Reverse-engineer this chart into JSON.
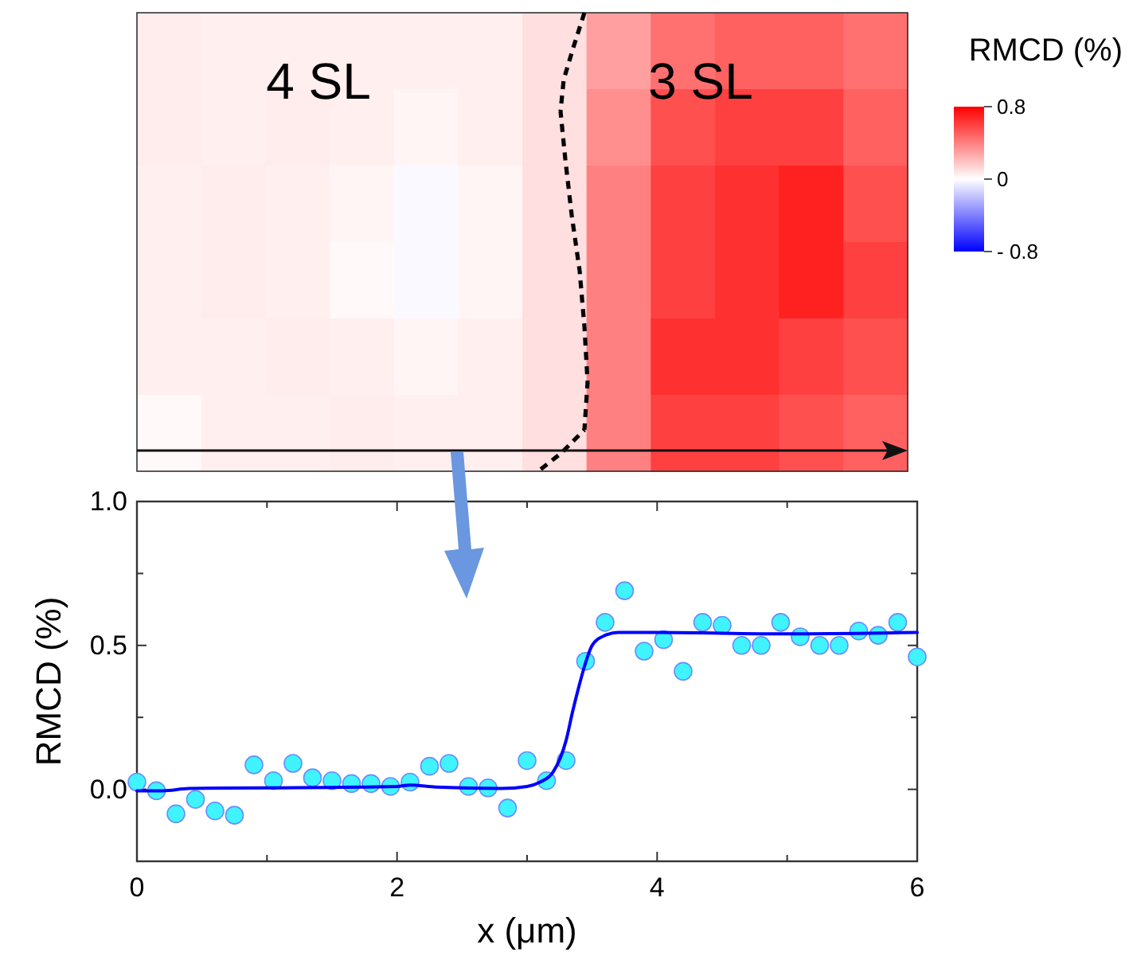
{
  "chart_data": [
    {
      "type": "heatmap",
      "clabel": "RMCD (%)",
      "annotations": [
        "4 SL",
        "3 SL"
      ],
      "categories": [
        null,
        null,
        null,
        null,
        null,
        null,
        null,
        null,
        null,
        null,
        null,
        null
      ],
      "y_categories": [
        null,
        null,
        null,
        null,
        null,
        null
      ],
      "cells": [
        [
          0.06,
          0.05,
          0.05,
          0.05,
          0.05,
          0.05,
          0.1,
          0.3,
          0.45,
          0.5,
          0.5,
          0.45
        ],
        [
          0.06,
          0.05,
          0.06,
          0.05,
          0.03,
          0.05,
          0.1,
          0.35,
          0.55,
          0.6,
          0.6,
          0.5
        ],
        [
          0.05,
          0.06,
          0.05,
          0.03,
          -0.02,
          0.03,
          0.1,
          0.4,
          0.6,
          0.65,
          0.7,
          0.55
        ],
        [
          0.05,
          0.06,
          0.05,
          0.02,
          -0.02,
          0.03,
          0.1,
          0.4,
          0.6,
          0.65,
          0.7,
          0.6
        ],
        [
          0.05,
          0.05,
          0.06,
          0.05,
          0.03,
          0.05,
          0.1,
          0.4,
          0.65,
          0.65,
          0.6,
          0.55
        ],
        [
          0.02,
          0.05,
          0.05,
          0.06,
          0.05,
          0.05,
          0.1,
          0.4,
          0.6,
          0.6,
          0.55,
          0.5
        ]
      ],
      "clim": [
        -0.8,
        0.8
      ],
      "cticks": [
        0.8,
        0,
        {
          "value": -0.8,
          "label": "- 0.8"
        }
      ]
    },
    {
      "type": "scatter",
      "xlabel": "x (μm)",
      "ylabel": "RMCD (%)",
      "xlim": [
        0,
        6
      ],
      "ylim": [
        -0.25,
        1.0
      ],
      "xticks": [
        0,
        {
          "value": 1,
          "label": null
        },
        2,
        {
          "value": 3,
          "label": null
        },
        4,
        {
          "value": 5,
          "label": null
        },
        6
      ],
      "yticks": [
        {
          "value": 0,
          "label": "0.0"
        },
        {
          "value": 0.25,
          "label": null
        },
        0.5,
        {
          "value": 0.75,
          "label": null
        },
        {
          "value": 1,
          "label": "1.0"
        }
      ],
      "grid": false,
      "series": [
        {
          "type": "scatter",
          "color": "#40f4ff",
          "marker": "circle",
          "x": [
            0,
            0.15,
            0.3,
            0.45,
            0.6,
            0.75,
            0.9,
            1.05,
            1.2,
            1.35,
            1.5,
            1.65,
            1.8,
            1.95,
            2.1,
            2.25,
            2.4,
            2.55,
            2.7,
            2.85,
            3.0,
            3.15,
            3.3,
            3.45,
            3.6,
            3.75,
            3.9,
            4.05,
            4.2,
            4.35,
            4.5,
            4.65,
            4.8,
            4.95,
            5.1,
            5.25,
            5.4,
            5.55,
            5.7,
            5.85,
            6.0
          ],
          "values": [
            0.025,
            -0.005,
            -0.085,
            -0.035,
            -0.075,
            -0.09,
            0.085,
            0.03,
            0.09,
            0.04,
            0.03,
            0.02,
            0.02,
            0.01,
            0.025,
            0.08,
            0.09,
            0.01,
            0.005,
            -0.065,
            0.1,
            0.03,
            0.1,
            0.445,
            0.58,
            0.69,
            0.48,
            0.52,
            0.41,
            0.58,
            0.57,
            0.5,
            0.5,
            0.58,
            0.53,
            0.5,
            0.5,
            0.55,
            0.535,
            0.58,
            0.46
          ]
        },
        {
          "type": "line",
          "color": "#0000ff",
          "marker": "none",
          "line_style": "solid",
          "x": [
            0,
            0.2,
            0.4,
            1,
            2,
            2.1,
            2.3,
            2.8,
            3.0,
            3.1,
            3.2,
            3.3,
            3.35,
            3.4,
            3.45,
            3.5,
            3.6,
            3.7,
            4,
            5,
            6
          ],
          "values": [
            -0.005,
            -0.005,
            0.003,
            0.005,
            0.01,
            0.015,
            0.008,
            0.003,
            0.01,
            0.025,
            0.06,
            0.17,
            0.27,
            0.36,
            0.44,
            0.5,
            0.535,
            0.545,
            0.545,
            0.54,
            0.545
          ]
        }
      ]
    }
  ]
}
